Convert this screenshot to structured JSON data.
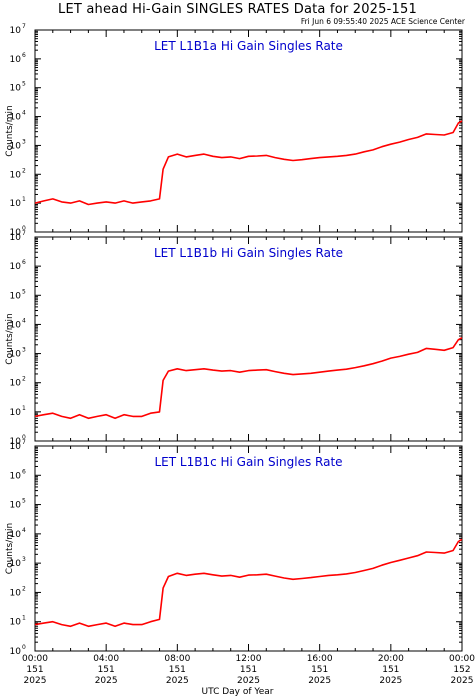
{
  "title": "LET ahead Hi-Gain SINGLES RATES Data for 2025-151",
  "timestamp": "Fri Jun  6 09:55:40 2025 ACE Science Center",
  "xlabel": "UTC Day of Year",
  "colors": {
    "series": "#ff0000",
    "panel_title": "#0000cc",
    "axes": "#000000"
  },
  "chart_data": [
    {
      "type": "line",
      "title": "LET L1B1a Hi Gain Singles Rate",
      "ylabel": "Counts/min",
      "yscale": "log",
      "ylim": [
        1,
        10000000
      ],
      "xlim": [
        0,
        24
      ],
      "x_ticks": [
        {
          "time": "00:00",
          "day": "151",
          "year": "2025"
        },
        {
          "time": "04:00",
          "day": "151",
          "year": "2025"
        },
        {
          "time": "08:00",
          "day": "151",
          "year": "2025"
        },
        {
          "time": "12:00",
          "day": "151",
          "year": "2025"
        },
        {
          "time": "16:00",
          "day": "151",
          "year": "2025"
        },
        {
          "time": "20:00",
          "day": "151",
          "year": "2025"
        },
        {
          "time": "00:00",
          "day": "152",
          "year": "2025"
        }
      ],
      "y_ticks": [
        {
          "base": "10",
          "exp": "0"
        },
        {
          "base": "10",
          "exp": "1"
        },
        {
          "base": "10",
          "exp": "2"
        },
        {
          "base": "10",
          "exp": "3"
        },
        {
          "base": "10",
          "exp": "4"
        },
        {
          "base": "10",
          "exp": "5"
        },
        {
          "base": "10",
          "exp": "6"
        },
        {
          "base": "10",
          "exp": "7"
        }
      ],
      "series": [
        {
          "x": [
            0,
            0.5,
            1,
            1.5,
            2,
            2.5,
            3,
            3.5,
            4,
            4.5,
            5,
            5.5,
            6,
            6.5,
            7,
            7.2,
            7.5,
            8,
            8.5,
            9,
            9.5,
            10,
            10.5,
            11,
            11.5,
            12,
            12.5,
            13,
            13.5,
            14,
            14.5,
            15,
            15.5,
            16,
            16.5,
            17,
            17.5,
            18,
            18.5,
            19,
            19.5,
            20,
            20.5,
            21,
            21.5,
            22,
            22.5,
            23,
            23.5,
            23.8,
            24
          ],
          "y": [
            10,
            12,
            14,
            11,
            10,
            12,
            9,
            10,
            11,
            10,
            12,
            10,
            11,
            12,
            14,
            150,
            400,
            500,
            400,
            450,
            500,
            420,
            380,
            400,
            350,
            420,
            430,
            450,
            380,
            330,
            300,
            320,
            350,
            380,
            400,
            420,
            450,
            500,
            600,
            700,
            900,
            1100,
            1300,
            1600,
            1900,
            2500,
            2400,
            2300,
            2800,
            6000,
            7000
          ]
        }
      ]
    },
    {
      "type": "line",
      "title": "LET L1B1b Hi Gain Singles Rate",
      "ylabel": "Counts/min",
      "yscale": "log",
      "ylim": [
        1,
        10000000
      ],
      "xlim": [
        0,
        24
      ],
      "x_ticks": [
        {
          "time": "00:00",
          "day": "151",
          "year": "2025"
        },
        {
          "time": "04:00",
          "day": "151",
          "year": "2025"
        },
        {
          "time": "08:00",
          "day": "151",
          "year": "2025"
        },
        {
          "time": "12:00",
          "day": "151",
          "year": "2025"
        },
        {
          "time": "16:00",
          "day": "151",
          "year": "2025"
        },
        {
          "time": "20:00",
          "day": "151",
          "year": "2025"
        },
        {
          "time": "00:00",
          "day": "152",
          "year": "2025"
        }
      ],
      "y_ticks": [
        {
          "base": "10",
          "exp": "0"
        },
        {
          "base": "10",
          "exp": "1"
        },
        {
          "base": "10",
          "exp": "2"
        },
        {
          "base": "10",
          "exp": "3"
        },
        {
          "base": "10",
          "exp": "4"
        },
        {
          "base": "10",
          "exp": "5"
        },
        {
          "base": "10",
          "exp": "6"
        },
        {
          "base": "10",
          "exp": "7"
        }
      ],
      "series": [
        {
          "x": [
            0,
            0.5,
            1,
            1.5,
            2,
            2.5,
            3,
            3.5,
            4,
            4.5,
            5,
            5.5,
            6,
            6.5,
            7,
            7.2,
            7.5,
            8,
            8.5,
            9,
            9.5,
            10,
            10.5,
            11,
            11.5,
            12,
            12.5,
            13,
            13.5,
            14,
            14.5,
            15,
            15.5,
            16,
            16.5,
            17,
            17.5,
            18,
            18.5,
            19,
            19.5,
            20,
            20.5,
            21,
            21.5,
            22,
            22.5,
            23,
            23.5,
            23.8,
            24
          ],
          "y": [
            7,
            8,
            9,
            7,
            6,
            8,
            6,
            7,
            8,
            6,
            8,
            7,
            7,
            9,
            10,
            120,
            250,
            300,
            260,
            280,
            300,
            270,
            250,
            260,
            230,
            260,
            270,
            280,
            240,
            210,
            190,
            200,
            210,
            230,
            250,
            270,
            290,
            330,
            380,
            450,
            550,
            700,
            800,
            950,
            1100,
            1500,
            1400,
            1300,
            1600,
            3000,
            3500
          ]
        }
      ]
    },
    {
      "type": "line",
      "title": "LET L1B1c Hi Gain Singles Rate",
      "ylabel": "Counts/min",
      "yscale": "log",
      "ylim": [
        1,
        10000000
      ],
      "xlim": [
        0,
        24
      ],
      "x_ticks": [
        {
          "time": "00:00",
          "day": "151",
          "year": "2025"
        },
        {
          "time": "04:00",
          "day": "151",
          "year": "2025"
        },
        {
          "time": "08:00",
          "day": "151",
          "year": "2025"
        },
        {
          "time": "12:00",
          "day": "151",
          "year": "2025"
        },
        {
          "time": "16:00",
          "day": "151",
          "year": "2025"
        },
        {
          "time": "20:00",
          "day": "151",
          "year": "2025"
        },
        {
          "time": "00:00",
          "day": "152",
          "year": "2025"
        }
      ],
      "y_ticks": [
        {
          "base": "10",
          "exp": "0"
        },
        {
          "base": "10",
          "exp": "1"
        },
        {
          "base": "10",
          "exp": "2"
        },
        {
          "base": "10",
          "exp": "3"
        },
        {
          "base": "10",
          "exp": "4"
        },
        {
          "base": "10",
          "exp": "5"
        },
        {
          "base": "10",
          "exp": "6"
        },
        {
          "base": "10",
          "exp": "7"
        }
      ],
      "series": [
        {
          "x": [
            0,
            0.5,
            1,
            1.5,
            2,
            2.5,
            3,
            3.5,
            4,
            4.5,
            5,
            5.5,
            6,
            6.5,
            7,
            7.2,
            7.5,
            8,
            8.5,
            9,
            9.5,
            10,
            10.5,
            11,
            11.5,
            12,
            12.5,
            13,
            13.5,
            14,
            14.5,
            15,
            15.5,
            16,
            16.5,
            17,
            17.5,
            18,
            18.5,
            19,
            19.5,
            20,
            20.5,
            21,
            21.5,
            22,
            22.5,
            23,
            23.5,
            23.8,
            24
          ],
          "y": [
            8,
            9,
            10,
            8,
            7,
            9,
            7,
            8,
            9,
            7,
            9,
            8,
            8,
            10,
            12,
            140,
            350,
            450,
            380,
            420,
            450,
            400,
            360,
            380,
            330,
            390,
            400,
            420,
            360,
            310,
            280,
            300,
            320,
            350,
            380,
            400,
            430,
            480,
            560,
            660,
            850,
            1050,
            1250,
            1500,
            1800,
            2400,
            2300,
            2200,
            2700,
            5500,
            6500
          ]
        }
      ]
    }
  ]
}
